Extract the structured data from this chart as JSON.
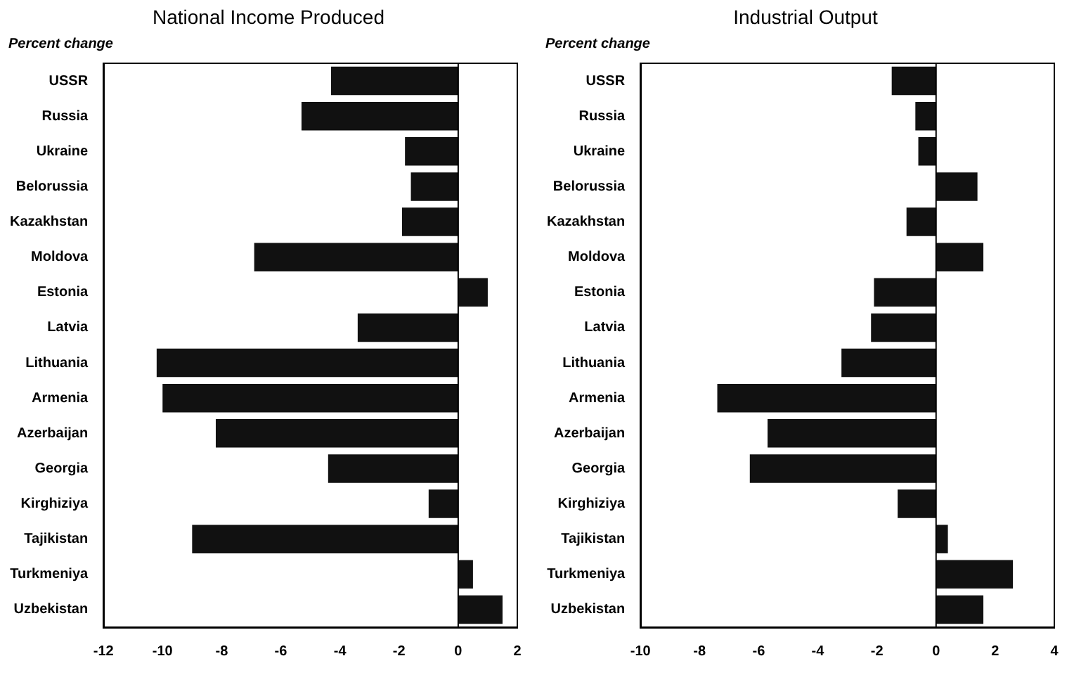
{
  "chart_data": [
    {
      "type": "bar",
      "orientation": "horizontal",
      "title": "National Income Produced",
      "ylabel": "Percent change",
      "categories": [
        "USSR",
        "Russia",
        "Ukraine",
        "Belorussia",
        "Kazakhstan",
        "Moldova",
        "Estonia",
        "Latvia",
        "Lithuania",
        "Armenia",
        "Azerbaijan",
        "Georgia",
        "Kirghiziya",
        "Tajikistan",
        "Turkmeniya",
        "Uzbekistan"
      ],
      "values": [
        -4.3,
        -5.3,
        -1.8,
        -1.6,
        -1.9,
        -6.9,
        1.0,
        -3.4,
        -10.2,
        -10.0,
        -8.2,
        -4.4,
        -1.0,
        -9.0,
        0.5,
        1.5
      ],
      "color": "#111111",
      "xlim": [
        -12,
        2
      ],
      "xticks": [
        -12,
        -10,
        -8,
        -6,
        -4,
        -2,
        0,
        2
      ],
      "grid": false,
      "legend": false,
      "ref_lines": [
        {
          "axis": "x",
          "value": 0
        }
      ]
    },
    {
      "type": "bar",
      "orientation": "horizontal",
      "title": "Industrial Output",
      "ylabel": "Percent change",
      "categories": [
        "USSR",
        "Russia",
        "Ukraine",
        "Belorussia",
        "Kazakhstan",
        "Moldova",
        "Estonia",
        "Latvia",
        "Lithuania",
        "Armenia",
        "Azerbaijan",
        "Georgia",
        "Kirghiziya",
        "Tajikistan",
        "Turkmeniya",
        "Uzbekistan"
      ],
      "values": [
        -1.5,
        -0.7,
        -0.6,
        1.4,
        -1.0,
        1.6,
        -2.1,
        -2.2,
        -3.2,
        -7.4,
        -5.7,
        -6.3,
        -1.3,
        0.4,
        2.6,
        1.6
      ],
      "color": "#111111",
      "xlim": [
        -10,
        4
      ],
      "xticks": [
        -10,
        -8,
        -6,
        -4,
        -2,
        0,
        2,
        4
      ],
      "grid": false,
      "legend": false,
      "ref_lines": [
        {
          "axis": "x",
          "value": 0
        }
      ]
    }
  ]
}
